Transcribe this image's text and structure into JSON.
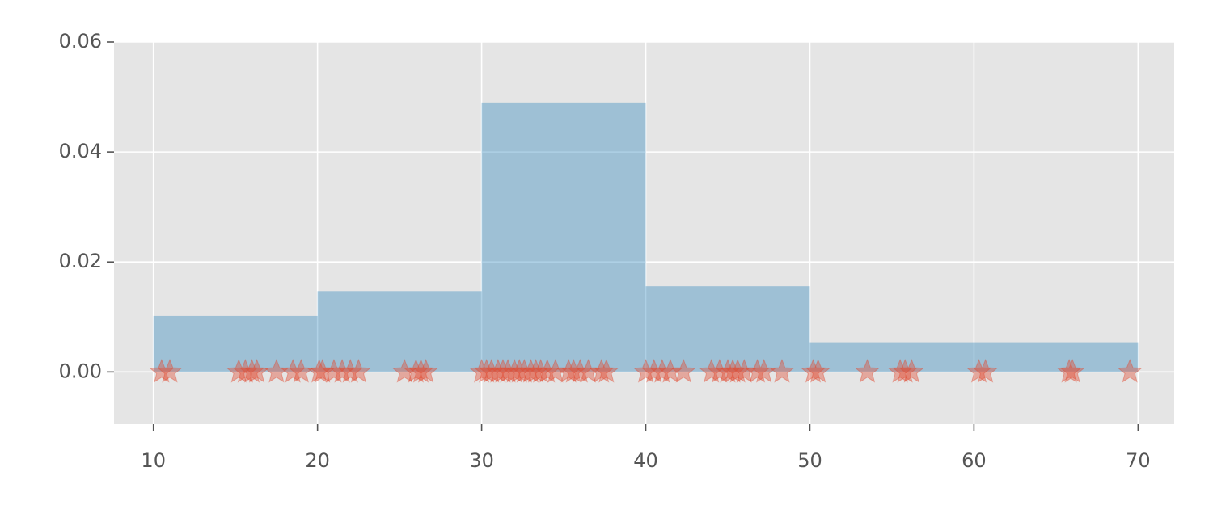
{
  "chart_data": {
    "type": "histogram",
    "bins": [
      10,
      20,
      30,
      40,
      50,
      70
    ],
    "values": [
      0.0102,
      0.0147,
      0.049,
      0.0156,
      0.0054
    ],
    "color": "#348ABD",
    "alpha": 0.4,
    "overlay": {
      "type": "scatter",
      "marker": "star",
      "color": "#E24A33",
      "alpha": 0.4,
      "x": [
        10.5,
        11,
        15.2,
        15.6,
        16,
        16.3,
        17.5,
        18.5,
        19,
        20.1,
        20.3,
        21,
        21.5,
        22,
        22.5,
        25.3,
        26,
        26.3,
        26.6,
        30,
        30.3,
        30.6,
        31,
        31.3,
        31.6,
        32,
        32.3,
        32.6,
        33,
        33.3,
        33.6,
        34,
        34.5,
        35.3,
        35.6,
        36,
        36.5,
        37.3,
        37.6,
        40,
        40.5,
        41,
        41.5,
        42.3,
        44,
        44.5,
        45,
        45.3,
        45.6,
        46,
        46.8,
        47.2,
        48.3,
        50.2,
        50.5,
        53.5,
        55.5,
        55.8,
        56.2,
        60.3,
        60.7,
        65.8,
        66,
        69.5
      ],
      "y": [
        0,
        0,
        0,
        0,
        0,
        0,
        0,
        0,
        0,
        0,
        0,
        0,
        0,
        0,
        0,
        0,
        0,
        0,
        0,
        0,
        0,
        0,
        0,
        0,
        0,
        0,
        0,
        0,
        0,
        0,
        0,
        0,
        0,
        0,
        0,
        0,
        0,
        0,
        0,
        0,
        0,
        0,
        0,
        0,
        0,
        0,
        0,
        0,
        0,
        0,
        0,
        0,
        0,
        0,
        0,
        0,
        0,
        0,
        0,
        0,
        0,
        0,
        0,
        0
      ]
    },
    "xlim": [
      7.6,
      72.2
    ],
    "ylim": [
      -0.0095,
      0.06
    ],
    "xticks": [
      10,
      20,
      30,
      40,
      50,
      60,
      70
    ],
    "yticks": [
      {
        "value": 0,
        "label": "0.00"
      },
      0.02,
      0.04,
      0.06
    ],
    "grid": true
  }
}
